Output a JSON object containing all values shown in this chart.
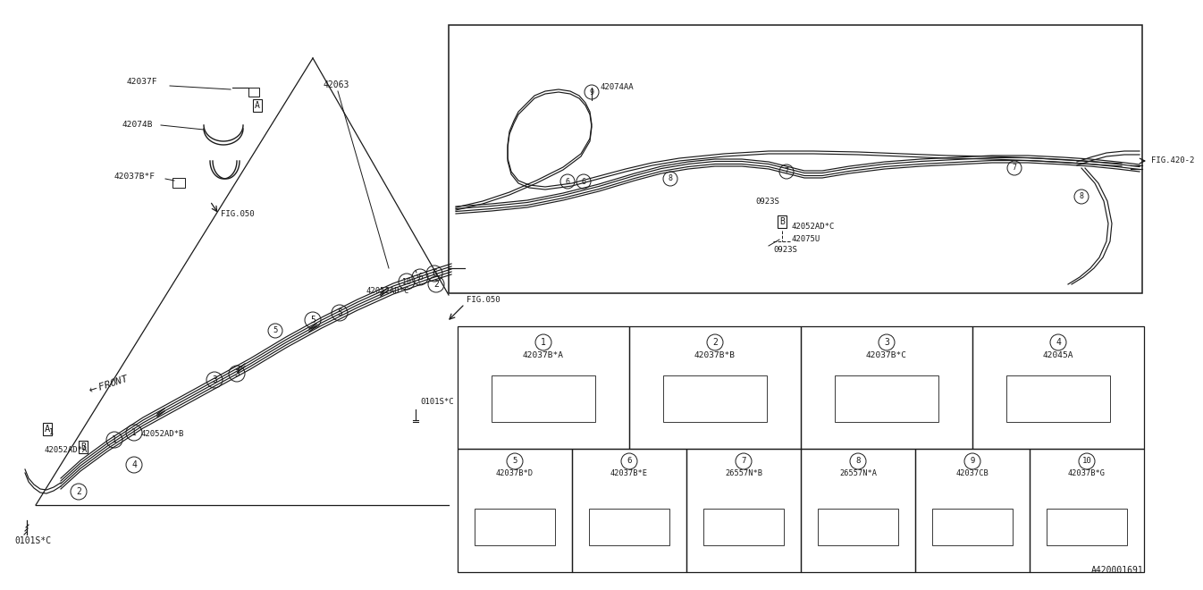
{
  "bg_color": "#ffffff",
  "line_color": "#1a1a1a",
  "diagram_id": "A420001691",
  "fig_ref1": "FIG.420-2",
  "fig_ref2": "FIG.050",
  "parts_table_row1": [
    {
      "num": "1",
      "code": "42037B*A"
    },
    {
      "num": "2",
      "code": "42037B*B"
    },
    {
      "num": "3",
      "code": "42037B*C"
    },
    {
      "num": "4",
      "code": "42045A"
    }
  ],
  "parts_table_row2": [
    {
      "num": "5",
      "code": "42037B*D"
    },
    {
      "num": "6",
      "code": "42037B*E"
    },
    {
      "num": "7",
      "code": "26557N*B"
    },
    {
      "num": "8",
      "code": "26557N*A"
    },
    {
      "num": "9",
      "code": "42037CB"
    },
    {
      "num": "10",
      "code": "42037B*G"
    }
  ]
}
